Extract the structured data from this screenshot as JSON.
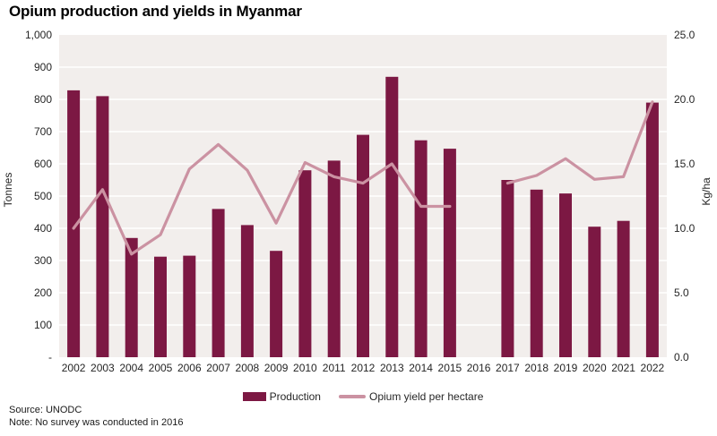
{
  "chart_data": {
    "type": "bar+line combo",
    "title": "Opium production and yields in Myanmar",
    "categories": [
      "2002",
      "2003",
      "2004",
      "2005",
      "2006",
      "2007",
      "2008",
      "2009",
      "2010",
      "2011",
      "2012",
      "2013",
      "2014",
      "2015",
      "2016",
      "2017",
      "2018",
      "2019",
      "2020",
      "2021",
      "2022"
    ],
    "series": [
      {
        "name": "Production",
        "type": "bar",
        "axis": "left",
        "unit": "tonnes",
        "color": "#7c1843",
        "values": [
          828,
          810,
          370,
          312,
          315,
          460,
          410,
          330,
          580,
          610,
          690,
          870,
          673,
          647,
          null,
          550,
          520,
          508,
          405,
          423,
          790
        ]
      },
      {
        "name": "Opium yield per hectare",
        "type": "line",
        "axis": "right",
        "unit": "kg/ha",
        "color": "#cb92a2",
        "values": [
          10.0,
          13.0,
          8.0,
          9.5,
          14.6,
          16.5,
          14.5,
          10.4,
          15.1,
          14.0,
          13.5,
          15.0,
          11.7,
          11.7,
          null,
          13.5,
          14.1,
          15.4,
          13.8,
          14.0,
          19.8
        ]
      }
    ],
    "ylabel_left": "Tonnes",
    "ylabel_right": "Kg/ha",
    "ylim_left": [
      0,
      1000
    ],
    "ylim_right": [
      0,
      25
    ],
    "grid": "horizontal white gridlines every 100 tonnes",
    "legend_position": "bottom center",
    "plot_bg": "#f2eeec",
    "gap_reason": "No survey was conducted in 2016"
  },
  "axes": {
    "left": {
      "title": "Tonnes",
      "ticks": [
        "1,000",
        "900",
        "800",
        "700",
        "600",
        "500",
        "400",
        "300",
        "200",
        "100",
        "-"
      ]
    },
    "right": {
      "title": "Kg/ha",
      "ticks": [
        "25.0",
        "20.0",
        "15.0",
        "10.0",
        "5.0",
        "0.0"
      ]
    }
  },
  "legend": {
    "items": [
      {
        "label": "Production",
        "marker": "bar-swatch",
        "color": "#7c1843"
      },
      {
        "label": "Opium yield per hectare",
        "marker": "line-swatch",
        "color": "#cb92a2"
      }
    ]
  },
  "footer": {
    "source": "Source: UNODC",
    "note": "Note: No survey was conducted in 2016"
  }
}
